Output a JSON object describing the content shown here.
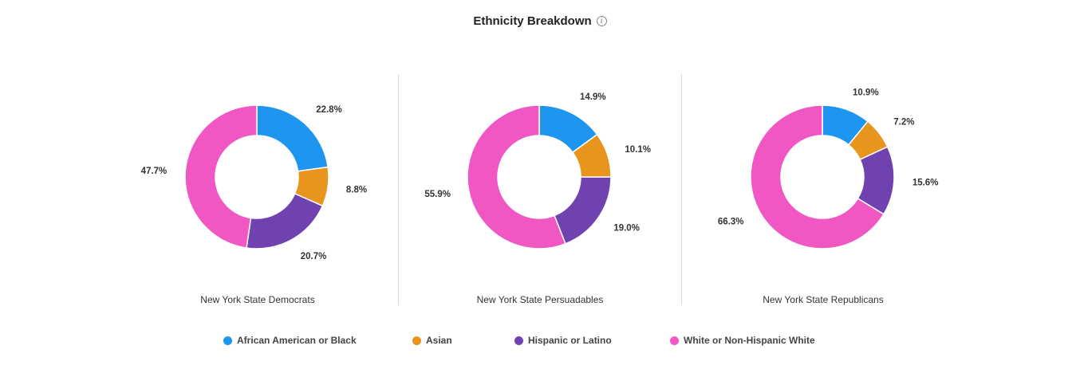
{
  "header": {
    "title": "Ethnicity Breakdown",
    "info_icon": "info-icon"
  },
  "colors": {
    "African American or Black": "#1e96f0",
    "Asian": "#e8951e",
    "Hispanic or Latino": "#6f42b0",
    "White or Non-Hispanic White": "#f057c3"
  },
  "chart_data": [
    {
      "type": "pie",
      "subtype": "donut",
      "title": "New York State Democrats",
      "categories": [
        "African American or Black",
        "Asian",
        "Hispanic or Latino",
        "White or Non-Hispanic White"
      ],
      "values": [
        22.8,
        8.8,
        20.7,
        47.7
      ],
      "labels": [
        "22.8%",
        "8.8%",
        "20.7%",
        "47.7%"
      ]
    },
    {
      "type": "pie",
      "subtype": "donut",
      "title": "New York State Persuadables",
      "categories": [
        "African American or Black",
        "Asian",
        "Hispanic or Latino",
        "White or Non-Hispanic White"
      ],
      "values": [
        14.9,
        10.1,
        19.0,
        55.9
      ],
      "labels": [
        "14.9%",
        "10.1%",
        "19.0%",
        "55.9%"
      ]
    },
    {
      "type": "pie",
      "subtype": "donut",
      "title": "New York State Republicans",
      "categories": [
        "African American or Black",
        "Asian",
        "Hispanic or Latino",
        "White or Non-Hispanic White"
      ],
      "values": [
        10.9,
        7.2,
        15.6,
        66.3
      ],
      "labels": [
        "10.9%",
        "7.2%",
        "15.6%",
        "66.3%"
      ]
    }
  ],
  "legend": {
    "placement": "bottom",
    "items": [
      {
        "label": "African American or Black"
      },
      {
        "label": "Asian"
      },
      {
        "label": "Hispanic or Latino"
      },
      {
        "label": "White or Non-Hispanic White"
      }
    ]
  }
}
